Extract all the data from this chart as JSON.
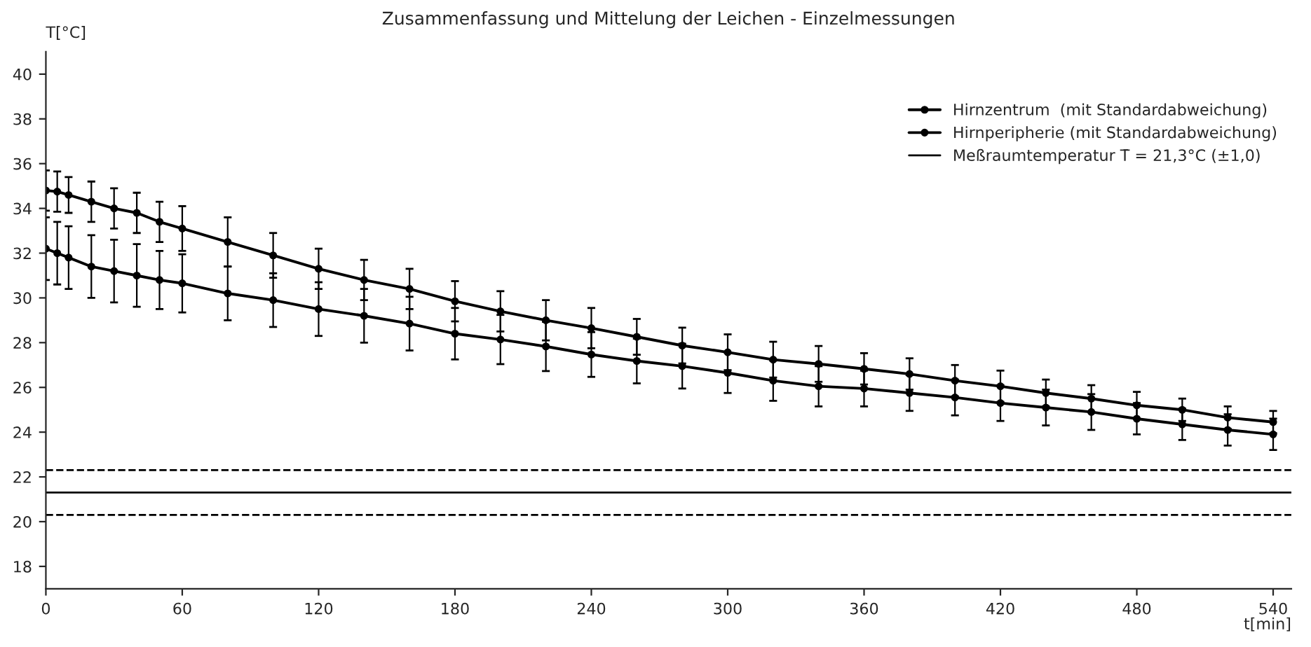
{
  "chart_data": {
    "type": "line",
    "title": "Zusammenfassung und Mittelung der Leichen - Einzelmessungen",
    "xlabel": "t[min]",
    "ylabel": "T[°C]",
    "x": [
      0,
      5,
      10,
      20,
      30,
      40,
      50,
      60,
      80,
      100,
      120,
      140,
      160,
      180,
      200,
      220,
      240,
      260,
      280,
      300,
      320,
      340,
      360,
      380,
      400,
      420,
      440,
      460,
      480,
      500,
      520,
      540
    ],
    "series": [
      {
        "name": "Hirnzentrum  (mit Standardabweichung)",
        "color": "#000000",
        "values": [
          34.8,
          34.75,
          34.6,
          34.3,
          34.0,
          33.8,
          33.4,
          33.1,
          32.5,
          31.9,
          31.3,
          30.8,
          30.4,
          29.85,
          29.4,
          29.0,
          28.65,
          28.26,
          27.87,
          27.57,
          27.24,
          27.05,
          26.83,
          26.6,
          26.3,
          26.05,
          25.75,
          25.5,
          25.2,
          25.0,
          24.65,
          24.45
        ],
        "errors": [
          0.9,
          0.9,
          0.8,
          0.9,
          0.9,
          0.9,
          0.9,
          1.0,
          1.1,
          1.0,
          0.9,
          0.9,
          0.9,
          0.9,
          0.9,
          0.9,
          0.9,
          0.8,
          0.8,
          0.8,
          0.8,
          0.8,
          0.7,
          0.7,
          0.7,
          0.7,
          0.6,
          0.6,
          0.6,
          0.5,
          0.5,
          0.5
        ]
      },
      {
        "name": "Hirnperipherie (mit Standardabweichung)",
        "color": "#000000",
        "values": [
          32.2,
          32.0,
          31.8,
          31.4,
          31.2,
          31.0,
          30.8,
          30.65,
          30.2,
          29.9,
          29.5,
          29.2,
          28.85,
          28.4,
          28.14,
          27.83,
          27.47,
          27.18,
          26.95,
          26.65,
          26.3,
          26.05,
          25.95,
          25.75,
          25.55,
          25.3,
          25.1,
          24.9,
          24.6,
          24.35,
          24.1,
          23.9
        ],
        "errors": [
          1.4,
          1.4,
          1.4,
          1.4,
          1.4,
          1.4,
          1.3,
          1.3,
          1.2,
          1.2,
          1.2,
          1.2,
          1.2,
          1.15,
          1.1,
          1.1,
          1.0,
          1.0,
          1.0,
          0.9,
          0.9,
          0.9,
          0.8,
          0.8,
          0.8,
          0.8,
          0.8,
          0.8,
          0.7,
          0.7,
          0.7,
          0.7
        ]
      }
    ],
    "ref_lines": [
      {
        "axis": "y",
        "value": 21.3,
        "label": "Meßraumtemperatur T̄ = 21,3°C (±1,0)",
        "line_style": "solid",
        "color": "#000000"
      },
      {
        "axis": "y",
        "value": 22.3,
        "label": null,
        "line_style": "dashed",
        "color": "#000000"
      },
      {
        "axis": "y",
        "value": 20.3,
        "label": null,
        "line_style": "dashed",
        "color": "#000000"
      }
    ],
    "xlim": [
      0,
      548
    ],
    "xticks": [
      0,
      60,
      120,
      180,
      240,
      300,
      360,
      420,
      480,
      540
    ],
    "ylim": [
      17,
      41
    ],
    "yticks": [
      18,
      20,
      22,
      24,
      26,
      28,
      30,
      32,
      34,
      36,
      38,
      40
    ],
    "marker": "circle",
    "line_style": "solid",
    "grid": false,
    "legend": "top right"
  }
}
